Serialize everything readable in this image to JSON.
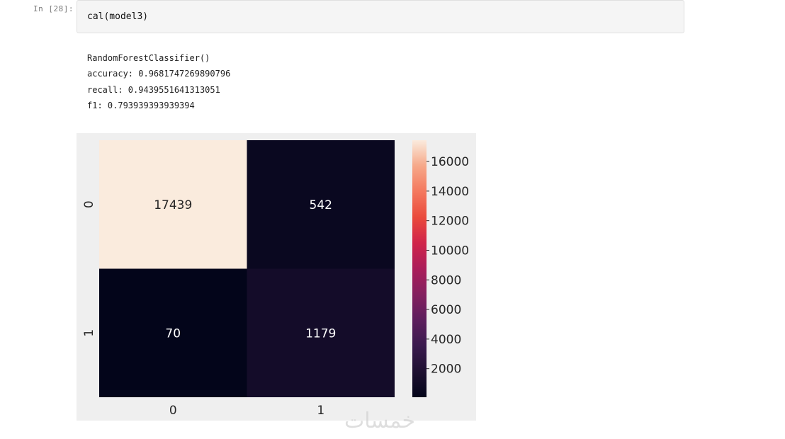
{
  "cell": {
    "prompt": "In [28]:",
    "code": "cal(model3)"
  },
  "output": {
    "lines": [
      "RandomForestClassifier()",
      "accuracy: 0.9681747269890796",
      "recall: 0.9439551641313051",
      "f1: 0.793939393939394"
    ]
  },
  "watermark": "خمسات",
  "chart_data": {
    "type": "heatmap",
    "row_labels": [
      "0",
      "1"
    ],
    "col_labels": [
      "0",
      "1"
    ],
    "values": [
      [
        17439,
        542
      ],
      [
        70,
        1179
      ]
    ],
    "colorbar": {
      "min": 70,
      "max": 17439,
      "ticks": [
        2000,
        4000,
        6000,
        8000,
        10000,
        12000,
        14000,
        16000
      ],
      "colormap": "rocket"
    },
    "title": "",
    "xlabel": "",
    "ylabel": ""
  }
}
